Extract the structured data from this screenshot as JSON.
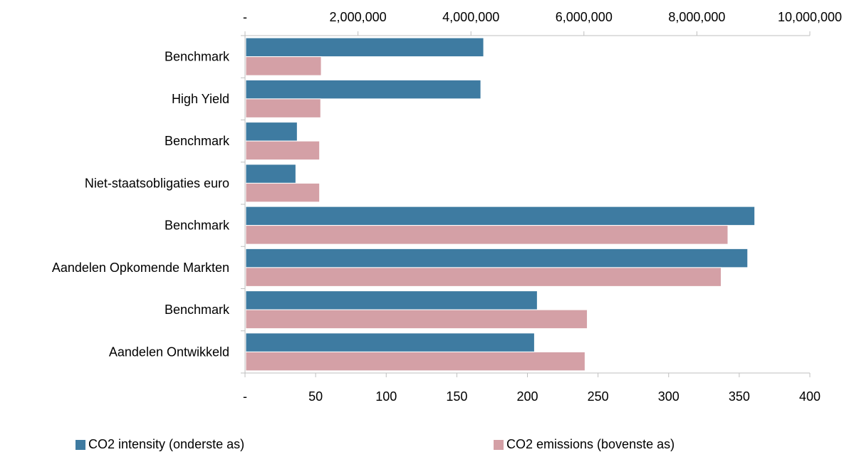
{
  "chart_data": {
    "type": "bar",
    "orientation": "horizontal",
    "categories": [
      "Benchmark",
      "High Yield",
      "Benchmark",
      "Niet-staatsobligaties euro",
      "Benchmark",
      "Aandelen Opkomende Markten",
      "Benchmark",
      "Aandelen Ontwikkeld"
    ],
    "series": [
      {
        "name": "CO2 intensity (onderste as)",
        "axis": "bottom",
        "color": "#3e7ba1",
        "values": [
          169,
          167,
          37,
          36,
          361,
          356,
          207,
          205
        ]
      },
      {
        "name": "CO2 emissions (bovenste as)",
        "axis": "top",
        "color": "#d4a0a6",
        "values": [
          1350000,
          1340000,
          1320000,
          1320000,
          8550000,
          8430000,
          6060000,
          6020000
        ]
      }
    ],
    "x_bottom": {
      "range": [
        0,
        400
      ],
      "ticks": [
        "-",
        "50",
        "100",
        "150",
        "200",
        "250",
        "300",
        "350",
        "400"
      ]
    },
    "x_top": {
      "range": [
        0,
        10000000
      ],
      "ticks": [
        "-",
        "2,000,000",
        "4,000,000",
        "6,000,000",
        "8,000,000",
        "10,000,000"
      ]
    },
    "legend_position": "bottom"
  }
}
